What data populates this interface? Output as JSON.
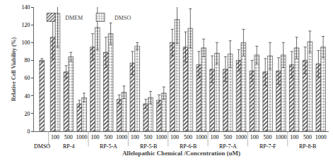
{
  "chart_data": {
    "type": "bar",
    "xlabel": "Allelopathic Chemical /Concentration (uM)",
    "ylabel": "Relative Cell Viability (%)",
    "groups": [
      {
        "label": "DMSO",
        "categories": [
          null
        ]
      },
      {
        "label": "RP-4",
        "categories": [
          "100",
          "500",
          "1000"
        ]
      },
      {
        "label": "RP-5-A",
        "categories": [
          "100",
          "500",
          "1000"
        ]
      },
      {
        "label": "RP-5-B",
        "categories": [
          "100",
          "500",
          "1000"
        ]
      },
      {
        "label": "RP-6-B",
        "categories": [
          "100",
          "500",
          "1000"
        ]
      },
      {
        "label": "RP-7-A",
        "categories": [
          "100",
          "500",
          "1000"
        ]
      },
      {
        "label": "RP-7-F",
        "categories": [
          "100",
          "500",
          "1000"
        ]
      },
      {
        "label": "RP-8-B",
        "categories": [
          "100",
          "500",
          "1000"
        ]
      }
    ],
    "series": [
      {
        "name": "DMEM",
        "color": "#555555",
        "marker": "hatch",
        "values": [
          80,
          106,
          67,
          31,
          95,
          89,
          36,
          77,
          31,
          35,
          100,
          95,
          75,
          70,
          70,
          80,
          68,
          67,
          68,
          75,
          80,
          76
        ],
        "errors": [
          2,
          25,
          7,
          4,
          15,
          17,
          5,
          13,
          5,
          6,
          15,
          17,
          15,
          15,
          14,
          12,
          12,
          15,
          15,
          15,
          15,
          15
        ]
      },
      {
        "name": "DMSO",
        "color": "#b0b0b0",
        "marker": "dots",
        "values": [
          null,
          133,
          84,
          38,
          117,
          110,
          44,
          96,
          38,
          43,
          126,
          116,
          94,
          88,
          87,
          100,
          86,
          85,
          86,
          94,
          101,
          95
        ],
        "errors": [
          null,
          38,
          5,
          5,
          25,
          12,
          7,
          4,
          7,
          7,
          27,
          22,
          10,
          12,
          15,
          15,
          10,
          15,
          14,
          12,
          12,
          12
        ]
      }
    ],
    "ylim": [
      0,
      140
    ],
    "yticks": [
      0,
      20,
      40,
      60,
      80,
      100,
      120,
      140
    ],
    "legend": "top-left",
    "grid": false
  }
}
